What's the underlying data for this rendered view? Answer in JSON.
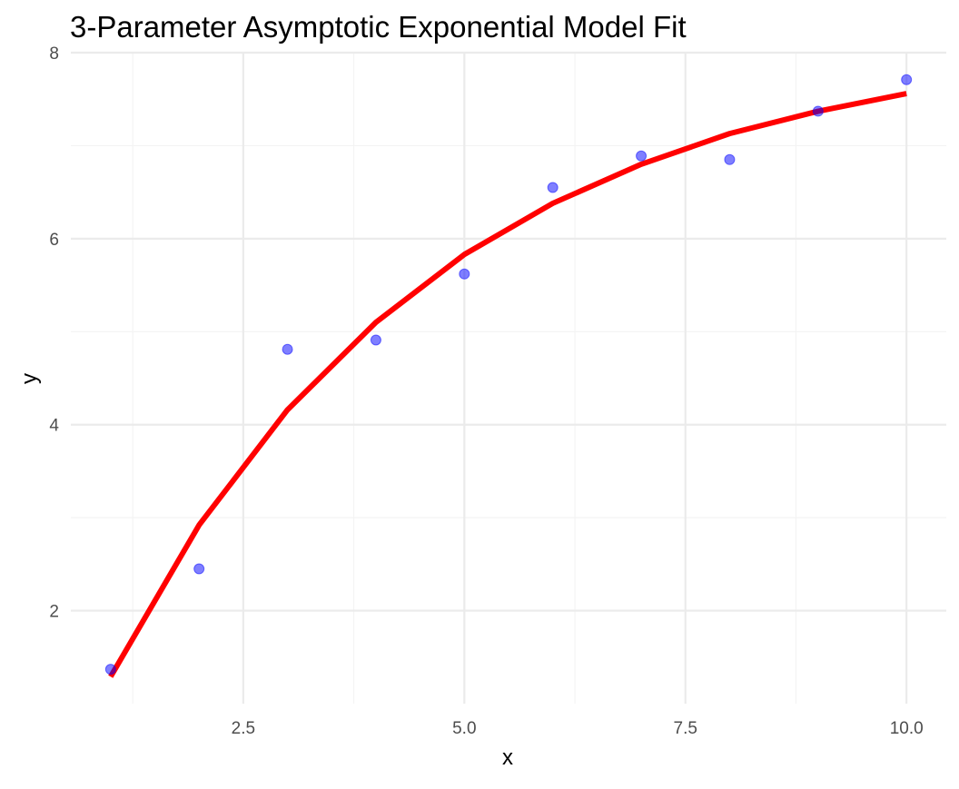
{
  "chart_data": {
    "type": "scatter",
    "title": "3-Parameter Asymptotic Exponential Model Fit",
    "xlabel": "x",
    "ylabel": "y",
    "xlim": [
      0.55,
      10.45
    ],
    "ylim": [
      1.0,
      8.0
    ],
    "x_ticks": [
      2.5,
      5.0,
      7.5,
      10.0
    ],
    "x_tick_labels": [
      "2.5",
      "5.0",
      "7.5",
      "10.0"
    ],
    "x_minor_ticks": [
      1.25,
      3.75,
      6.25,
      8.75
    ],
    "y_ticks": [
      2,
      4,
      6,
      8
    ],
    "y_tick_labels": [
      "2",
      "4",
      "6",
      "8"
    ],
    "y_minor_ticks": [
      3,
      5,
      7
    ],
    "grid": true,
    "legend": "none",
    "series": [
      {
        "kind": "points",
        "color": "#0000ff",
        "opacity": 0.5,
        "x": [
          1,
          2,
          3,
          4,
          5,
          6,
          7,
          8,
          9,
          10
        ],
        "y": [
          1.37,
          2.45,
          4.81,
          4.91,
          5.62,
          6.55,
          6.89,
          6.85,
          7.37,
          7.71
        ]
      },
      {
        "kind": "line",
        "color": "#ff0000",
        "x": [
          1,
          2,
          3,
          4,
          5,
          6,
          7,
          8,
          9,
          10
        ],
        "y": [
          1.29,
          2.92,
          4.16,
          5.1,
          5.83,
          6.38,
          6.8,
          7.13,
          7.37,
          7.56
        ]
      }
    ]
  }
}
